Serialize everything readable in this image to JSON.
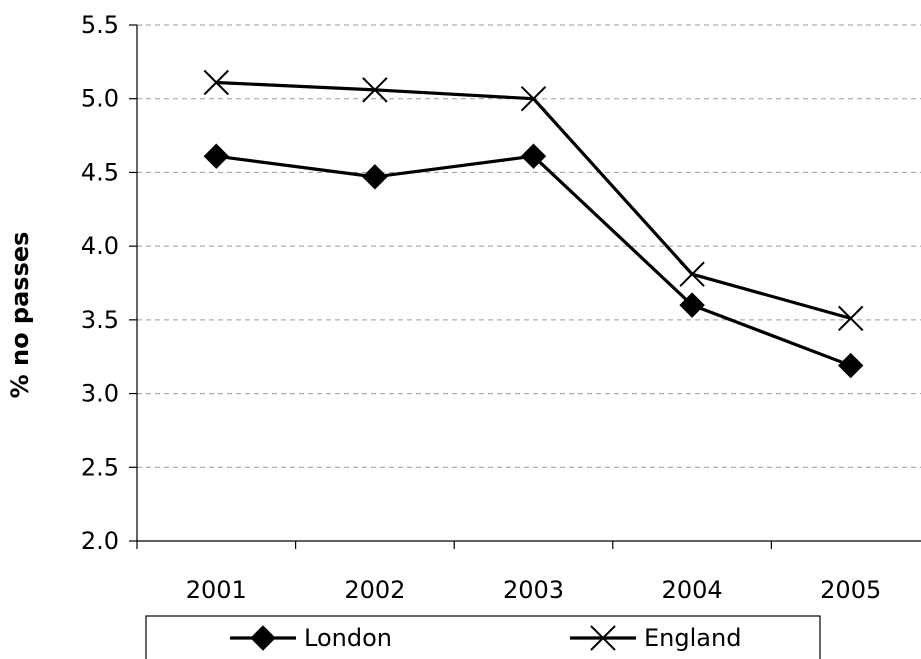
{
  "chart_data": {
    "type": "line",
    "title": "",
    "xlabel": "",
    "ylabel": "% no passes",
    "categories": [
      "2001",
      "2002",
      "2003",
      "2004",
      "2005"
    ],
    "ylim": [
      2.0,
      5.5
    ],
    "yticks": [
      "2.0",
      "2.5",
      "3.0",
      "3.5",
      "4.0",
      "4.5",
      "5.0",
      "5.5"
    ],
    "grid": true,
    "legend_position": "bottom",
    "series": [
      {
        "name": "London",
        "marker": "diamond",
        "color": "#000000",
        "values": [
          4.61,
          4.47,
          4.61,
          3.6,
          3.19
        ]
      },
      {
        "name": "England",
        "marker": "x",
        "color": "#000000",
        "values": [
          5.11,
          5.06,
          5.0,
          3.81,
          3.51
        ]
      }
    ]
  }
}
